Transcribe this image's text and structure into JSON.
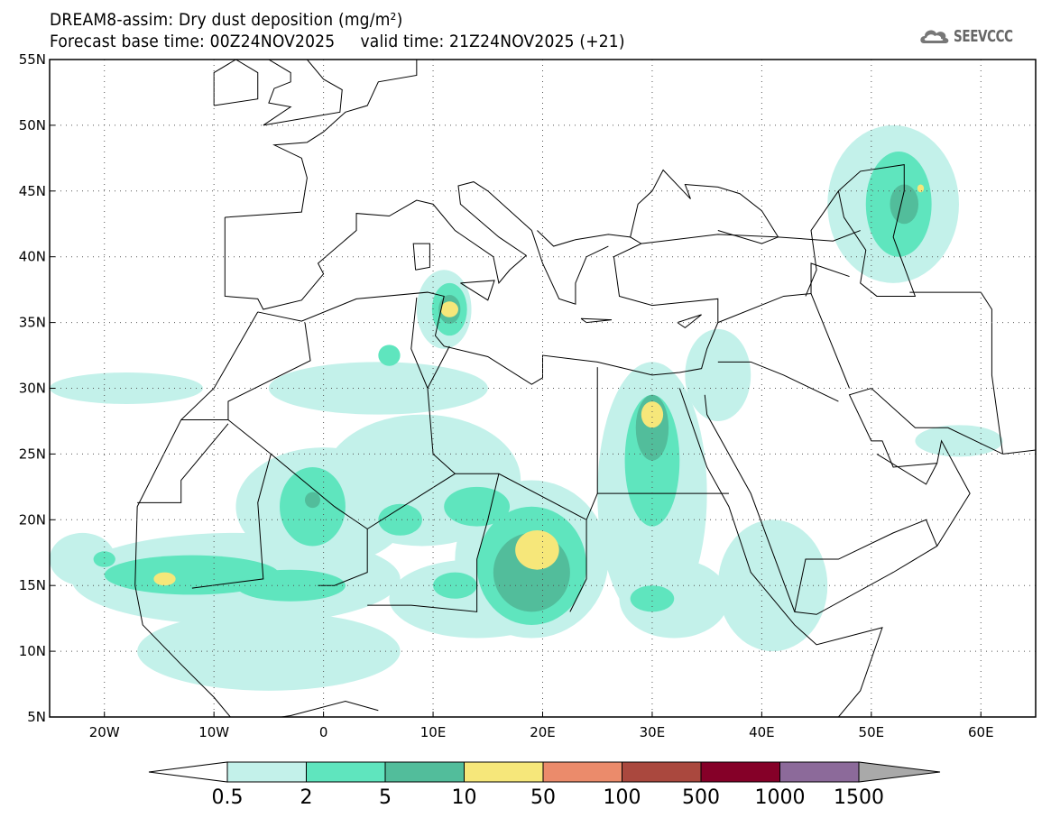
{
  "title": {
    "line1": "DREAM8-assim: Dry dust deposition (mg/m²)",
    "line2": "Forecast base time: 00Z24NOV2025     valid time: 21Z24NOV2025 (+21)"
  },
  "logo": {
    "text": "SEEVCCC",
    "icon": "cloud-icon"
  },
  "map": {
    "lon_range": [
      -25,
      65
    ],
    "lat_range": [
      5,
      55
    ],
    "lat_labels": [
      {
        "v": 55,
        "t": "55N"
      },
      {
        "v": 50,
        "t": "50N"
      },
      {
        "v": 45,
        "t": "45N"
      },
      {
        "v": 40,
        "t": "40N"
      },
      {
        "v": 35,
        "t": "35N"
      },
      {
        "v": 30,
        "t": "30N"
      },
      {
        "v": 25,
        "t": "25N"
      },
      {
        "v": 20,
        "t": "20N"
      },
      {
        "v": 15,
        "t": "15N"
      },
      {
        "v": 10,
        "t": "10N"
      },
      {
        "v": 5,
        "t": "5N"
      }
    ],
    "lon_labels": [
      {
        "v": -20,
        "t": "20W"
      },
      {
        "v": -10,
        "t": "10W"
      },
      {
        "v": 0,
        "t": "0"
      },
      {
        "v": 10,
        "t": "10E"
      },
      {
        "v": 20,
        "t": "20E"
      },
      {
        "v": 30,
        "t": "30E"
      },
      {
        "v": 40,
        "t": "40E"
      },
      {
        "v": 50,
        "t": "50E"
      },
      {
        "v": 60,
        "t": "60E"
      }
    ],
    "dust_areas": [
      {
        "lon": -18,
        "lat": 30,
        "rx": 7,
        "ry": 1.2,
        "level": 0
      },
      {
        "lon": -8,
        "lat": 15.5,
        "rx": 15,
        "ry": 3.5,
        "level": 0
      },
      {
        "lon": -5,
        "lat": 10,
        "rx": 12,
        "ry": 3,
        "level": 0
      },
      {
        "lon": 0,
        "lat": 21,
        "rx": 8,
        "ry": 4.5,
        "level": 0
      },
      {
        "lon": 9,
        "lat": 23,
        "rx": 9,
        "ry": 5,
        "level": 0
      },
      {
        "lon": 14,
        "lat": 14,
        "rx": 8,
        "ry": 3,
        "level": 0
      },
      {
        "lon": 19,
        "lat": 17,
        "rx": 7,
        "ry": 6,
        "level": 0
      },
      {
        "lon": 30,
        "lat": 22,
        "rx": 5,
        "ry": 10,
        "level": 0
      },
      {
        "lon": 32,
        "lat": 14,
        "rx": 5,
        "ry": 3,
        "level": 0
      },
      {
        "lon": 5,
        "lat": 30,
        "rx": 10,
        "ry": 2,
        "level": 0
      },
      {
        "lon": 11,
        "lat": 36,
        "rx": 2.5,
        "ry": 3,
        "level": 0
      },
      {
        "lon": 36,
        "lat": 31,
        "rx": 3,
        "ry": 3.5,
        "level": 0
      },
      {
        "lon": 41,
        "lat": 15,
        "rx": 5,
        "ry": 5,
        "level": 0
      },
      {
        "lon": 52,
        "lat": 44,
        "rx": 6,
        "ry": 6,
        "level": 0
      },
      {
        "lon": 58,
        "lat": 26,
        "rx": 4,
        "ry": 1.2,
        "level": 0
      },
      {
        "lon": -22,
        "lat": 17,
        "rx": 3,
        "ry": 2,
        "level": 0
      },
      {
        "lon": -12,
        "lat": 15.8,
        "rx": 8,
        "ry": 1.5,
        "level": 1
      },
      {
        "lon": -3,
        "lat": 15,
        "rx": 5,
        "ry": 1.2,
        "level": 1
      },
      {
        "lon": -1,
        "lat": 21,
        "rx": 3,
        "ry": 3,
        "level": 1
      },
      {
        "lon": 7,
        "lat": 20,
        "rx": 2,
        "ry": 1.2,
        "level": 1
      },
      {
        "lon": 14,
        "lat": 21,
        "rx": 3,
        "ry": 1.5,
        "level": 1
      },
      {
        "lon": 19,
        "lat": 16.5,
        "rx": 5,
        "ry": 4.5,
        "level": 1
      },
      {
        "lon": 12,
        "lat": 15,
        "rx": 2,
        "ry": 1,
        "level": 1
      },
      {
        "lon": 30,
        "lat": 24.5,
        "rx": 2.5,
        "ry": 5,
        "level": 1
      },
      {
        "lon": 30,
        "lat": 14,
        "rx": 2,
        "ry": 1,
        "level": 1
      },
      {
        "lon": 11.5,
        "lat": 36,
        "rx": 1.6,
        "ry": 2,
        "level": 1
      },
      {
        "lon": 6,
        "lat": 32.5,
        "rx": 1,
        "ry": 0.8,
        "level": 1
      },
      {
        "lon": 52.5,
        "lat": 44,
        "rx": 3,
        "ry": 4,
        "level": 1
      },
      {
        "lon": -20,
        "lat": 17,
        "rx": 1,
        "ry": 0.6,
        "level": 1
      },
      {
        "lon": 19,
        "lat": 16,
        "rx": 3.5,
        "ry": 3,
        "level": 2
      },
      {
        "lon": 30,
        "lat": 27,
        "rx": 1.5,
        "ry": 2.5,
        "level": 2
      },
      {
        "lon": -1,
        "lat": 21.5,
        "rx": 0.7,
        "ry": 0.6,
        "level": 2
      },
      {
        "lon": 11.5,
        "lat": 36,
        "rx": 1,
        "ry": 1.1,
        "level": 2
      },
      {
        "lon": 53,
        "lat": 44,
        "rx": 1.3,
        "ry": 1.5,
        "level": 2
      },
      {
        "lon": -14.5,
        "lat": 15.5,
        "rx": 1,
        "ry": 0.5,
        "level": 3
      },
      {
        "lon": 19.5,
        "lat": 17.7,
        "rx": 2,
        "ry": 1.5,
        "level": 3
      },
      {
        "lon": 30,
        "lat": 28,
        "rx": 1,
        "ry": 1,
        "level": 3
      },
      {
        "lon": 11.5,
        "lat": 36,
        "rx": 0.8,
        "ry": 0.6,
        "level": 3
      },
      {
        "lon": 54.5,
        "lat": 45.2,
        "rx": 0.3,
        "ry": 0.3,
        "level": 3
      }
    ]
  },
  "colorbar": {
    "colors": [
      "#c3f1ea",
      "#5fe5be",
      "#52bd9b",
      "#f6e77a",
      "#eb8b6b",
      "#aa483e",
      "#850028",
      "#8c6a9a"
    ],
    "under_color": "#ffffff",
    "over_color": "#a9a9a9",
    "labels": [
      "0.5",
      "2",
      "5",
      "10",
      "50",
      "100",
      "500",
      "1000",
      "1500"
    ]
  }
}
